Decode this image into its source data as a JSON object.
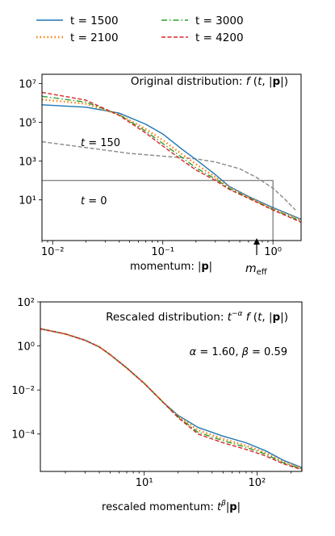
{
  "legend": {
    "entries": [
      {
        "label": "t = 1500",
        "color": "#1f77b4",
        "style": "solid"
      },
      {
        "label": "t = 2100",
        "color": "#ff7f0e",
        "style": "dotted"
      },
      {
        "label": "t = 3000",
        "color": "#2ca02c",
        "style": "dashdot"
      },
      {
        "label": "t = 4200",
        "color": "#d62728",
        "style": "dashed"
      }
    ]
  },
  "chart_data": [
    {
      "type": "line",
      "title": "Original distribution: f (t, |p|)",
      "xlabel": "momentum: |p|",
      "ylabel": "",
      "xscale": "log",
      "yscale": "log",
      "xlim": [
        0.008,
        1.8
      ],
      "ylim": [
        0.08,
        30000000
      ],
      "xticks": [
        {
          "value": 0.01,
          "label": "10⁻²"
        },
        {
          "value": 0.1,
          "label": "10⁻¹"
        },
        {
          "value": 1,
          "label": "10⁰"
        }
      ],
      "yticks": [
        {
          "value": 10,
          "label": "10¹"
        },
        {
          "value": 1000,
          "label": "10³"
        },
        {
          "value": 100000,
          "label": "10⁵"
        },
        {
          "value": 10000000,
          "label": "10⁷"
        }
      ],
      "annotations": [
        {
          "text": "t = 150",
          "x": 0.02,
          "y": 1200
        },
        {
          "text": "t = 0",
          "x": 0.02,
          "y": 18
        },
        {
          "text": "m_eff",
          "x": 0.58,
          "arrow": true
        }
      ],
      "reference_curves": [
        {
          "name": "t = 150",
          "color": "#888888",
          "style": "dashed",
          "points": [
            [
              0.008,
              10000
            ],
            [
              0.02,
              5000
            ],
            [
              0.05,
              2500
            ],
            [
              0.1,
              1800
            ],
            [
              0.2,
              1300
            ],
            [
              0.3,
              900
            ],
            [
              0.5,
              400
            ],
            [
              0.7,
              150
            ],
            [
              1.0,
              40
            ],
            [
              1.3,
              10
            ],
            [
              1.6,
              3
            ]
          ]
        },
        {
          "name": "t = 0",
          "color": "#888888",
          "style": "solid",
          "points": [
            [
              0.008,
              100
            ],
            [
              1.0,
              100
            ],
            [
              1.0,
              0.08
            ]
          ]
        }
      ],
      "series": [
        {
          "name": "t = 1500",
          "color": "#1f77b4",
          "style": "solid",
          "points": [
            [
              0.008,
              800000
            ],
            [
              0.02,
              600000
            ],
            [
              0.04,
              300000
            ],
            [
              0.07,
              80000
            ],
            [
              0.1,
              25000
            ],
            [
              0.15,
              4000
            ],
            [
              0.2,
              1200
            ],
            [
              0.3,
              200
            ],
            [
              0.4,
              50
            ],
            [
              0.6,
              15
            ],
            [
              1.0,
              4
            ],
            [
              1.8,
              1.0
            ]
          ]
        },
        {
          "name": "t = 2100",
          "color": "#ff7f0e",
          "style": "dotted",
          "points": [
            [
              0.008,
              1500000
            ],
            [
              0.02,
              900000
            ],
            [
              0.04,
              250000
            ],
            [
              0.07,
              45000
            ],
            [
              0.1,
              12000
            ],
            [
              0.15,
              2200
            ],
            [
              0.2,
              700
            ],
            [
              0.3,
              150
            ],
            [
              0.4,
              45
            ],
            [
              0.6,
              14
            ],
            [
              1.0,
              3.5
            ],
            [
              1.8,
              0.9
            ]
          ]
        },
        {
          "name": "t = 3000",
          "color": "#2ca02c",
          "style": "dashdot",
          "points": [
            [
              0.008,
              2200000
            ],
            [
              0.02,
              1100000
            ],
            [
              0.04,
              250000
            ],
            [
              0.07,
              35000
            ],
            [
              0.1,
              8000
            ],
            [
              0.15,
              1500
            ],
            [
              0.2,
              450
            ],
            [
              0.3,
              120
            ],
            [
              0.4,
              40
            ],
            [
              0.6,
              13
            ],
            [
              1.0,
              3.2
            ],
            [
              1.8,
              0.8
            ]
          ]
        },
        {
          "name": "t = 4200",
          "color": "#d62728",
          "style": "dashed",
          "points": [
            [
              0.008,
              3500000
            ],
            [
              0.02,
              1400000
            ],
            [
              0.04,
              230000
            ],
            [
              0.07,
              28000
            ],
            [
              0.1,
              6000
            ],
            [
              0.15,
              1100
            ],
            [
              0.2,
              350
            ],
            [
              0.3,
              100
            ],
            [
              0.4,
              35
            ],
            [
              0.6,
              12
            ],
            [
              1.0,
              3.0
            ],
            [
              1.8,
              0.7
            ]
          ]
        }
      ]
    },
    {
      "type": "line",
      "title": "Rescaled distribution: t^-α f (t, |p|)",
      "subtitle": "α = 1.60, β = 0.59",
      "xlabel": "rescaled momentum: t^β|p|",
      "ylabel": "",
      "xscale": "log",
      "yscale": "log",
      "xlim": [
        1.2,
        250
      ],
      "ylim": [
        2e-06,
        100
      ],
      "xticks": [
        {
          "value": 10,
          "label": "10¹"
        },
        {
          "value": 100,
          "label": "10²"
        }
      ],
      "yticks": [
        {
          "value": 0.0001,
          "label": "10⁻⁴"
        },
        {
          "value": 0.01,
          "label": "10⁻²"
        },
        {
          "value": 1,
          "label": "10⁰"
        },
        {
          "value": 100,
          "label": "10²"
        }
      ],
      "series": [
        {
          "name": "t = 1500",
          "color": "#1f77b4",
          "style": "solid",
          "points": [
            [
              1.2,
              6
            ],
            [
              2,
              3.5
            ],
            [
              3,
              1.8
            ],
            [
              4,
              0.9
            ],
            [
              5,
              0.4
            ],
            [
              7,
              0.1
            ],
            [
              10,
              0.02
            ],
            [
              15,
              0.0025
            ],
            [
              20,
              0.0007
            ],
            [
              30,
              0.0002
            ],
            [
              50,
              8e-05
            ],
            [
              80,
              4e-05
            ],
            [
              120,
              1.7e-05
            ],
            [
              170,
              6.5e-06
            ],
            [
              250,
              3e-06
            ]
          ]
        },
        {
          "name": "t = 2100",
          "color": "#ff7f0e",
          "style": "dotted",
          "points": [
            [
              1.2,
              6
            ],
            [
              2,
              3.5
            ],
            [
              3,
              1.8
            ],
            [
              4,
              0.9
            ],
            [
              5,
              0.4
            ],
            [
              7,
              0.1
            ],
            [
              10,
              0.02
            ],
            [
              15,
              0.0025
            ],
            [
              20,
              0.00065
            ],
            [
              30,
              0.00015
            ],
            [
              50,
              6e-05
            ],
            [
              80,
              3e-05
            ],
            [
              120,
              1.4e-05
            ],
            [
              170,
              5.5e-06
            ],
            [
              250,
              2.8e-06
            ]
          ]
        },
        {
          "name": "t = 3000",
          "color": "#2ca02c",
          "style": "dashdot",
          "points": [
            [
              1.2,
              6
            ],
            [
              2,
              3.5
            ],
            [
              3,
              1.8
            ],
            [
              4,
              0.9
            ],
            [
              5,
              0.4
            ],
            [
              7,
              0.1
            ],
            [
              10,
              0.02
            ],
            [
              15,
              0.0025
            ],
            [
              20,
              0.0006
            ],
            [
              30,
              0.00012
            ],
            [
              50,
              5e-05
            ],
            [
              80,
              2.5e-05
            ],
            [
              120,
              1.2e-05
            ],
            [
              170,
              5e-06
            ],
            [
              250,
              2.6e-06
            ]
          ]
        },
        {
          "name": "t = 4200",
          "color": "#d62728",
          "style": "dashed",
          "points": [
            [
              1.2,
              6
            ],
            [
              2,
              3.5
            ],
            [
              3,
              1.8
            ],
            [
              4,
              0.9
            ],
            [
              5,
              0.4
            ],
            [
              7,
              0.1
            ],
            [
              10,
              0.02
            ],
            [
              15,
              0.0025
            ],
            [
              20,
              0.00055
            ],
            [
              30,
              0.0001
            ],
            [
              50,
              4e-05
            ],
            [
              80,
              2e-05
            ],
            [
              120,
              1e-05
            ],
            [
              170,
              4.5e-06
            ],
            [
              250,
              2.4e-06
            ]
          ]
        }
      ]
    }
  ]
}
